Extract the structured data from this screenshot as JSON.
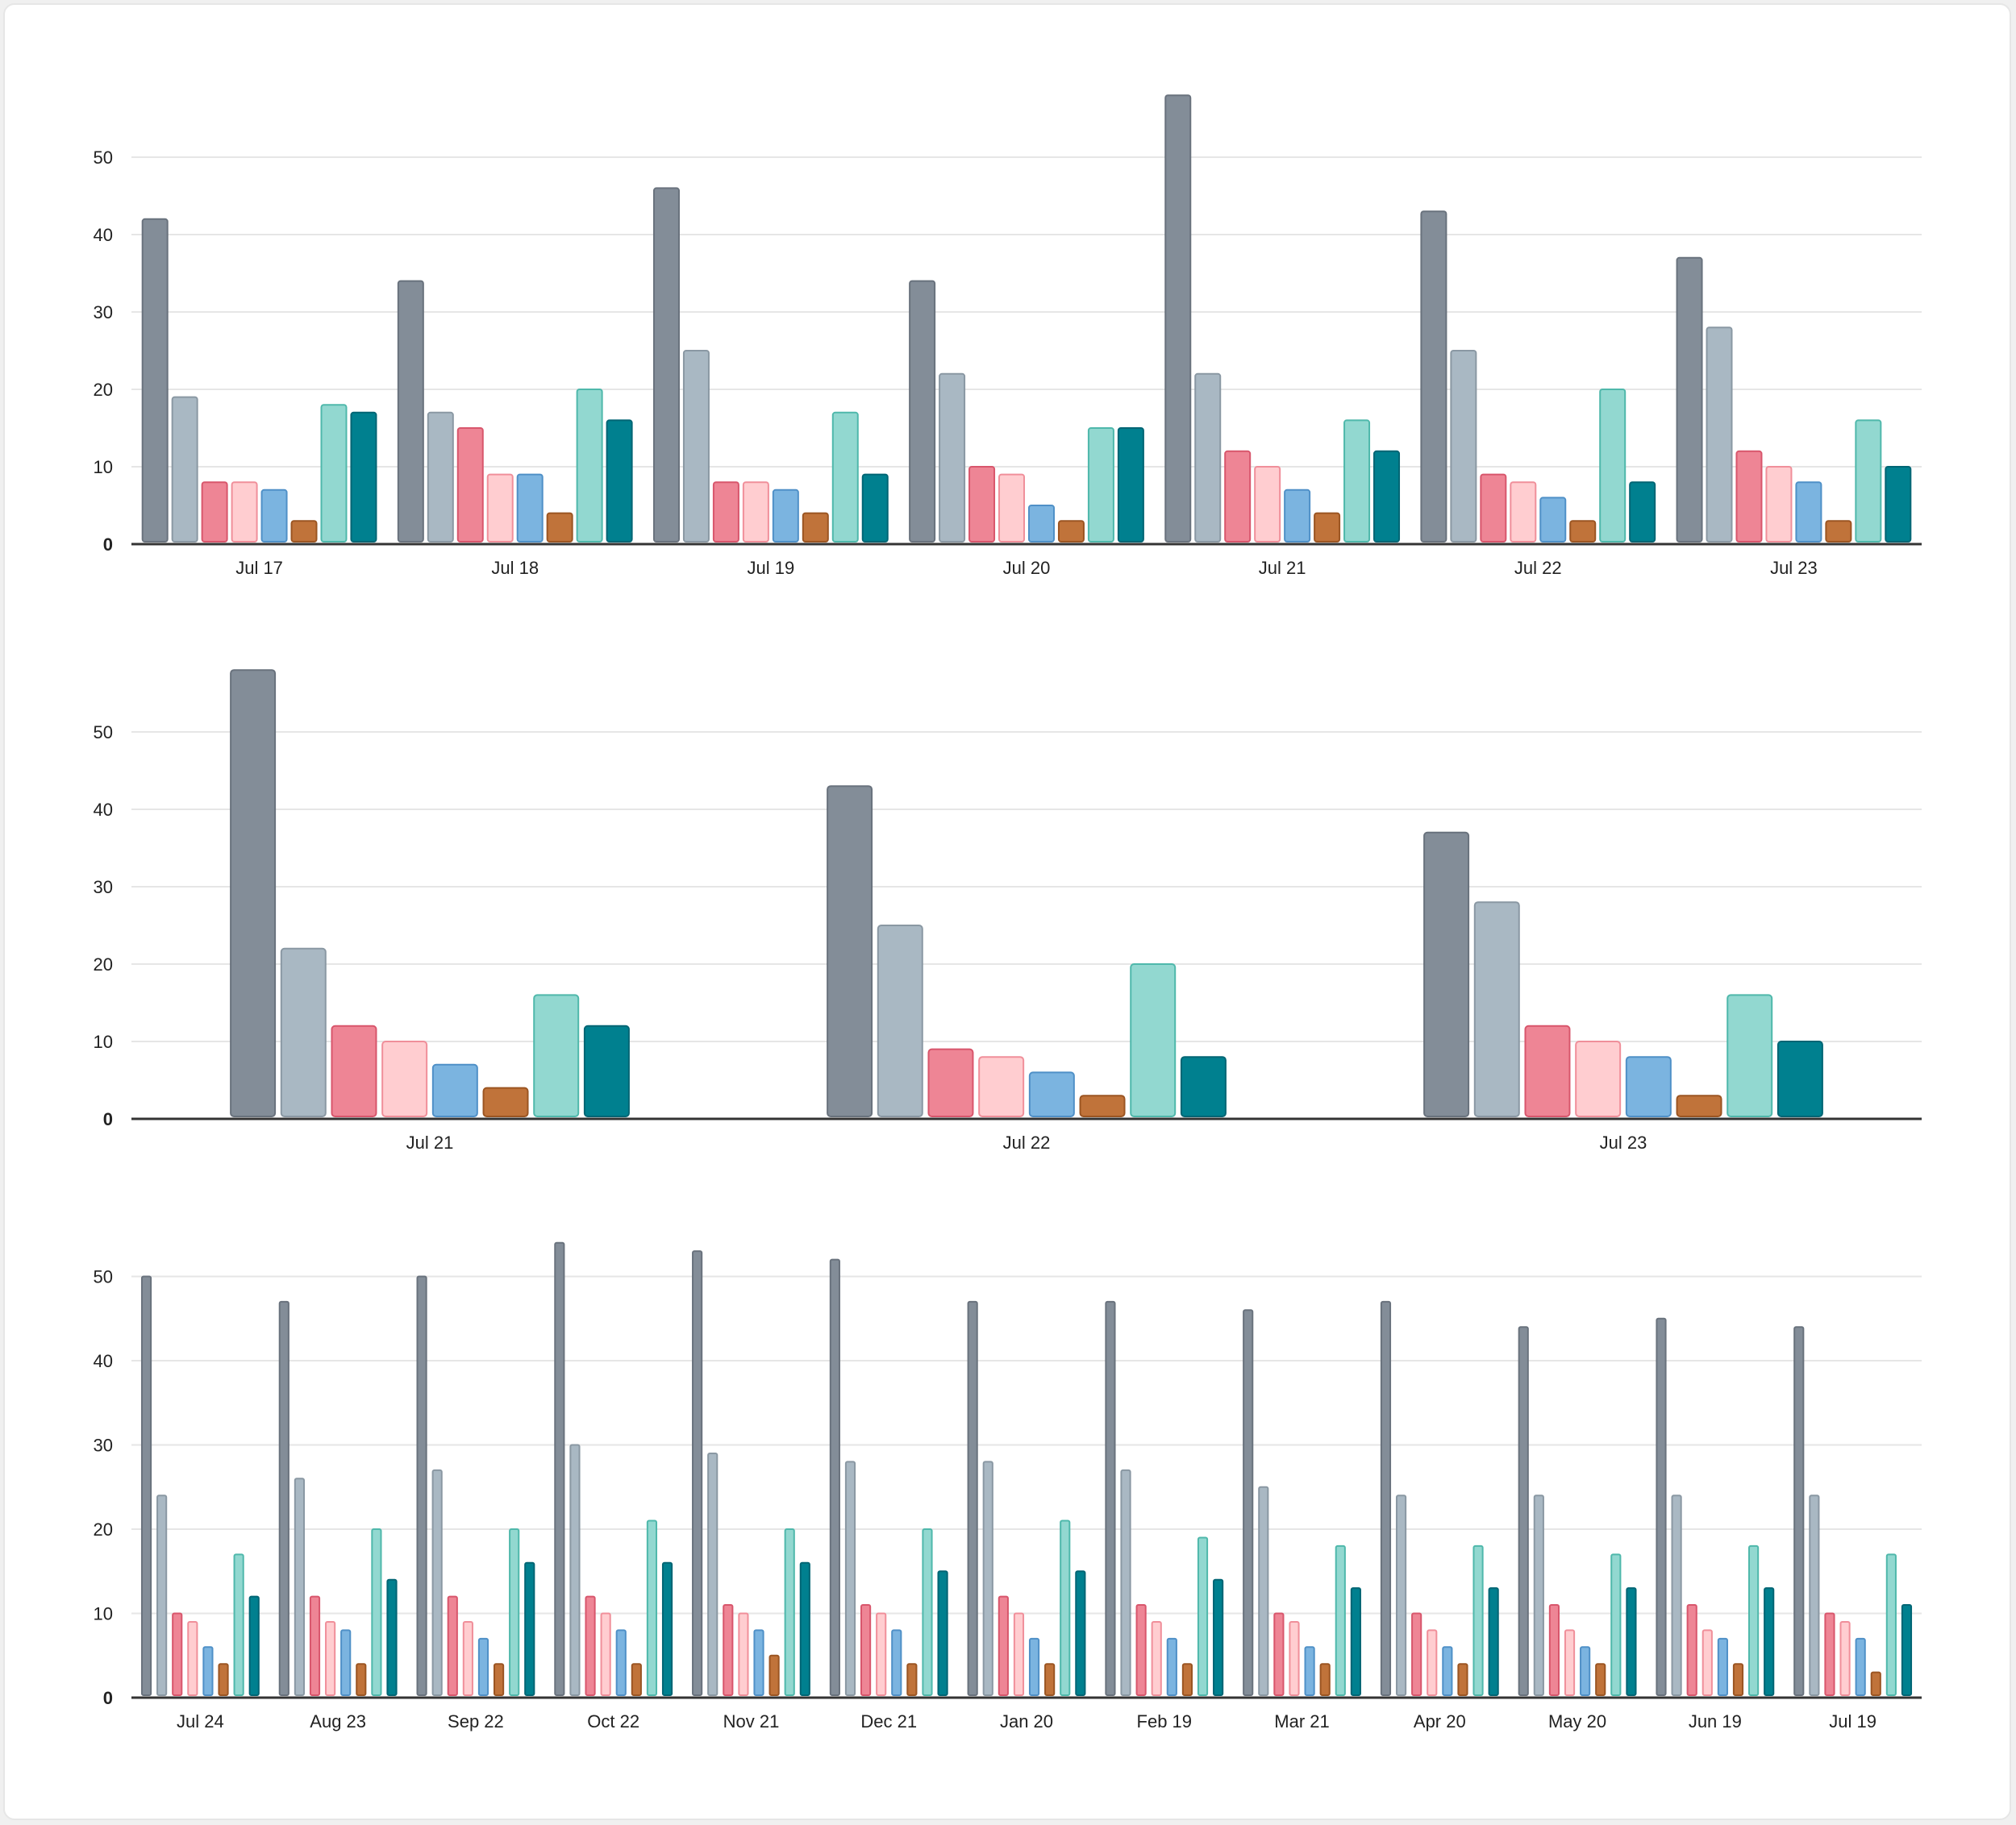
{
  "palette": {
    "fills": [
      "#838d98",
      "#a9b8c3",
      "#ee8595",
      "#ffcdd0",
      "#7bb4e0",
      "#c0733a",
      "#92d8d0",
      "#00808f"
    ],
    "strokes": [
      "#69727d",
      "#8a98a3",
      "#d8566c",
      "#f08f9a",
      "#4f90c7",
      "#9b5522",
      "#4fb8ab",
      "#006574"
    ],
    "grid": "#e6e6e6",
    "axis": "#333333"
  },
  "chart_data": [
    {
      "type": "bar",
      "title": "",
      "xlabel": "",
      "ylabel": "",
      "ylim": [
        0,
        60
      ],
      "yticks": [
        "0",
        "10",
        "20",
        "30",
        "40",
        "50"
      ],
      "grid": true,
      "legend": "none",
      "categories": [
        "Jul 17",
        "Jul 18",
        "Jul 19",
        "Jul 20",
        "Jul 21",
        "Jul 22",
        "Jul 23"
      ],
      "series": [
        {
          "values": [
            42,
            34,
            46,
            34,
            58,
            43,
            37
          ]
        },
        {
          "values": [
            19,
            17,
            25,
            22,
            22,
            25,
            28
          ]
        },
        {
          "values": [
            8,
            15,
            8,
            10,
            12,
            9,
            12
          ]
        },
        {
          "values": [
            8,
            9,
            8,
            9,
            10,
            8,
            10
          ]
        },
        {
          "values": [
            7,
            9,
            7,
            5,
            7,
            6,
            8
          ]
        },
        {
          "values": [
            3,
            4,
            4,
            3,
            4,
            3,
            3
          ]
        },
        {
          "values": [
            18,
            20,
            17,
            15,
            16,
            20,
            16
          ]
        },
        {
          "values": [
            17,
            16,
            9,
            15,
            12,
            8,
            10
          ]
        }
      ]
    },
    {
      "type": "bar",
      "title": "",
      "xlabel": "",
      "ylabel": "",
      "ylim": [
        0,
        60
      ],
      "yticks": [
        "0",
        "10",
        "20",
        "30",
        "40",
        "50"
      ],
      "grid": true,
      "legend": "none",
      "categories": [
        "Jul 21",
        "Jul 22",
        "Jul 23"
      ],
      "series": [
        {
          "values": [
            58,
            43,
            37
          ]
        },
        {
          "values": [
            22,
            25,
            28
          ]
        },
        {
          "values": [
            12,
            9,
            12
          ]
        },
        {
          "values": [
            10,
            8,
            10
          ]
        },
        {
          "values": [
            7,
            6,
            8
          ]
        },
        {
          "values": [
            4,
            3,
            3
          ]
        },
        {
          "values": [
            16,
            20,
            16
          ]
        },
        {
          "values": [
            12,
            8,
            10
          ]
        }
      ]
    },
    {
      "type": "bar",
      "title": "",
      "xlabel": "",
      "ylabel": "",
      "ylim": [
        0,
        55
      ],
      "yticks": [
        "0",
        "10",
        "20",
        "30",
        "40",
        "50"
      ],
      "grid": true,
      "legend": "none",
      "categories": [
        "Jul 24",
        "Aug 23",
        "Sep 22",
        "Oct 22",
        "Nov 21",
        "Dec 21",
        "Jan 20",
        "Feb 19",
        "Mar 21",
        "Apr 20",
        "May 20",
        "Jun 19",
        "Jul 19"
      ],
      "series": [
        {
          "values": [
            50,
            47,
            50,
            54,
            53,
            52,
            47,
            47,
            46,
            47,
            44,
            45,
            44
          ]
        },
        {
          "values": [
            24,
            26,
            27,
            30,
            29,
            28,
            28,
            27,
            25,
            24,
            24,
            24,
            24
          ]
        },
        {
          "values": [
            10,
            12,
            12,
            12,
            11,
            11,
            12,
            11,
            10,
            10,
            11,
            11,
            10
          ]
        },
        {
          "values": [
            9,
            9,
            9,
            10,
            10,
            10,
            10,
            9,
            9,
            8,
            8,
            8,
            9
          ]
        },
        {
          "values": [
            6,
            8,
            7,
            8,
            8,
            8,
            7,
            7,
            6,
            6,
            6,
            7,
            7
          ]
        },
        {
          "values": [
            4,
            4,
            4,
            4,
            5,
            4,
            4,
            4,
            4,
            4,
            4,
            4,
            3
          ]
        },
        {
          "values": [
            17,
            20,
            20,
            21,
            20,
            20,
            21,
            19,
            18,
            18,
            17,
            18,
            17
          ]
        },
        {
          "values": [
            12,
            14,
            16,
            16,
            16,
            15,
            15,
            14,
            13,
            13,
            13,
            13,
            11
          ]
        }
      ]
    }
  ]
}
